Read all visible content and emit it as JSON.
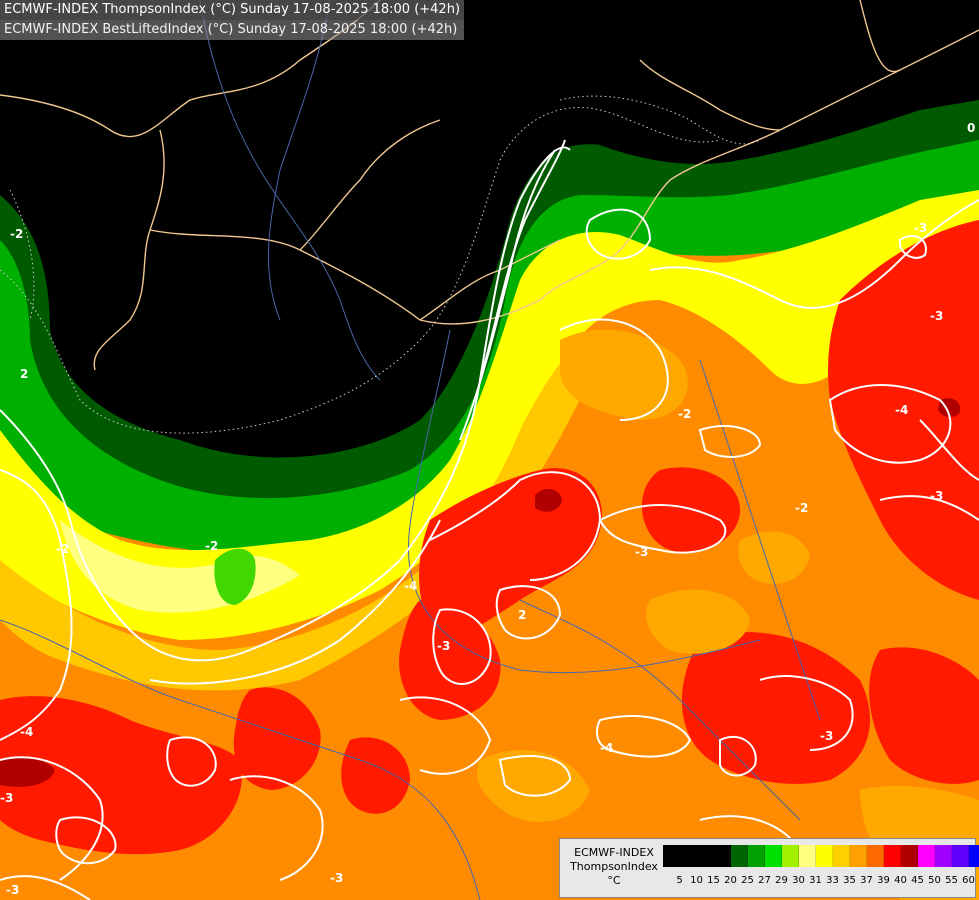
{
  "titles": [
    "ECMWF-INDEX ThompsonIndex (°C) Sunday 17-08-2025 18:00 (+42h)",
    "ECMWF-INDEX BestLiftedIndex (°C) Sunday 17-08-2025 18:00 (+42h)"
  ],
  "legend": {
    "model": "ECMWF-INDEX",
    "variable": "ThompsonIndex",
    "unit": "°C",
    "ticks": [
      "5",
      "10",
      "15",
      "20",
      "25",
      "27",
      "29",
      "30",
      "31",
      "33",
      "35",
      "37",
      "39",
      "40",
      "45",
      "50",
      "55",
      "60"
    ],
    "colors": [
      "#000000",
      "#000000",
      "#000000",
      "#000000",
      "#006400",
      "#00a000",
      "#00e000",
      "#a0f000",
      "#ffff80",
      "#ffff00",
      "#ffd000",
      "#ffa000",
      "#ff6a00",
      "#ff0000",
      "#b00000",
      "#ff00ff",
      "#a000ff",
      "#6000ff",
      "#0000ff"
    ]
  },
  "palette": {
    "background": "#000000",
    "dark_green": "#005a00",
    "green": "#00a800",
    "light_green": "#40e000",
    "yellow_green": "#c8f000",
    "pale_yellow": "#ffff80",
    "yellow": "#ffff00",
    "gold": "#ffd000",
    "orange": "#ffa000",
    "dark_orange": "#ff6a00",
    "red": "#ff1a00",
    "dark_red": "#b00000",
    "border_color": "#f0c890",
    "river_color": "#4060a0",
    "isoline_color": "#ffffff"
  },
  "contour_labels": [
    "2",
    "2",
    "-2",
    "-2",
    "-2",
    "-2",
    "-3",
    "-3",
    "-3",
    "-3",
    "-3",
    "-4",
    "-4",
    "-4",
    "-4",
    "-3",
    "-3",
    "-2",
    "-3",
    "-3",
    "0"
  ]
}
